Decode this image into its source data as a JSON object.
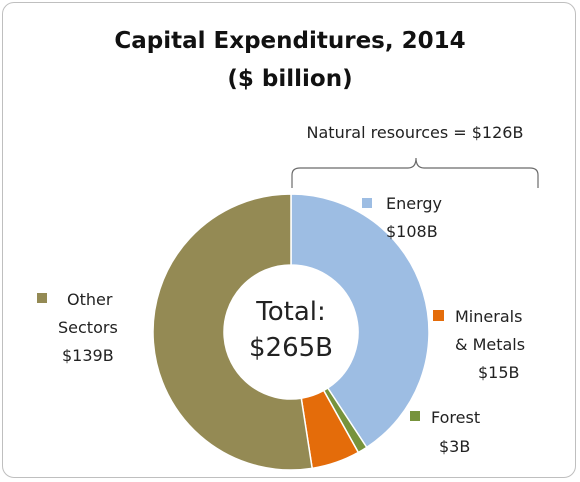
{
  "chart_data": {
    "type": "pie",
    "title": "Capital Expenditures, 2014",
    "subtitle": "($ billion)",
    "center_label": {
      "line1": "Total:",
      "line2": "$265B"
    },
    "bracket_label": "Natural resources = $126B",
    "slices": [
      {
        "name": "Energy",
        "value": 108,
        "value_label": "$108B",
        "color": "#9dbde3"
      },
      {
        "name": "Forest",
        "value": 3,
        "value_label": "$3B",
        "color": "#77933c"
      },
      {
        "name": "Minerals & Metals",
        "value": 15,
        "value_label": "$15B",
        "color": "#e46c0a"
      },
      {
        "name": "Other Sectors",
        "value": 139,
        "value_label": "$139B",
        "color": "#948a54"
      }
    ]
  }
}
